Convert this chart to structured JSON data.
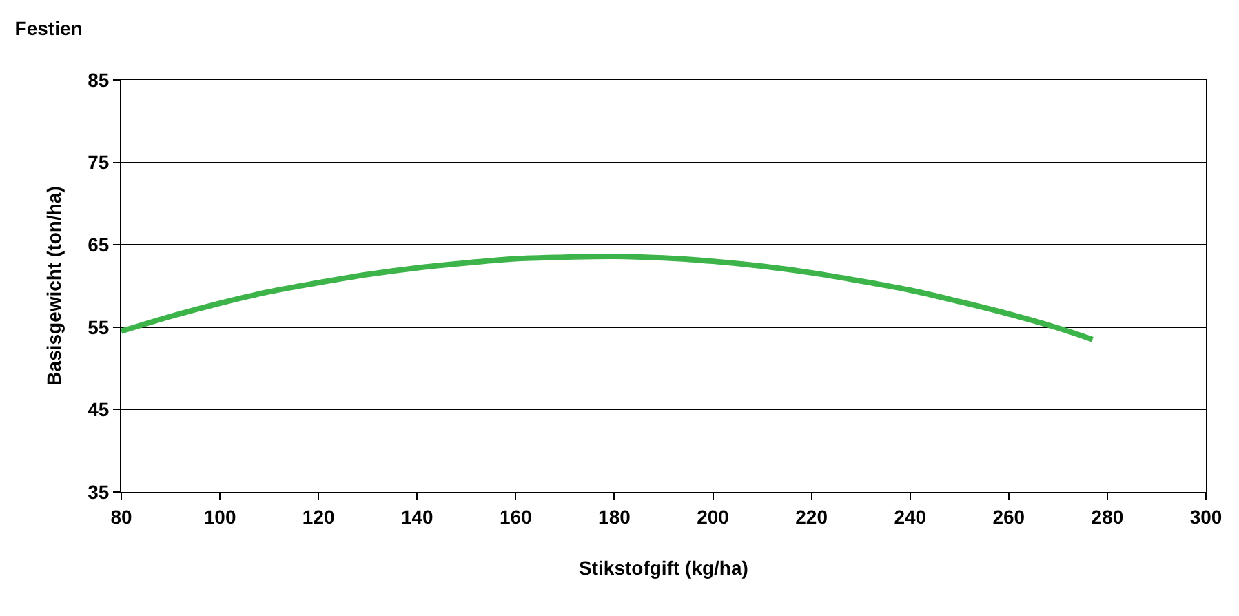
{
  "chart_data": {
    "type": "line",
    "title": "Festien",
    "xlabel": "Stikstofgift (kg/ha)",
    "ylabel": "Basisgewicht (ton/ha)",
    "x": [
      80,
      90,
      100,
      110,
      120,
      130,
      140,
      150,
      160,
      170,
      180,
      190,
      200,
      210,
      220,
      230,
      240,
      250,
      260,
      270,
      277
    ],
    "series": [
      {
        "color": "#3cb44a",
        "values": [
          54.5,
          56.3,
          57.9,
          59.3,
          60.4,
          61.4,
          62.2,
          62.8,
          63.3,
          63.5,
          63.6,
          63.4,
          63.0,
          62.4,
          61.6,
          60.6,
          59.5,
          58.1,
          56.6,
          54.9,
          53.5
        ]
      }
    ],
    "xlim": [
      80,
      300
    ],
    "xticks": [
      80,
      100,
      120,
      140,
      160,
      180,
      200,
      220,
      240,
      260,
      280,
      300
    ],
    "ylim": [
      35,
      85
    ],
    "yticks": [
      35,
      45,
      55,
      65,
      75,
      85
    ],
    "grid": "y",
    "line_style": "solid",
    "marker": "none"
  }
}
